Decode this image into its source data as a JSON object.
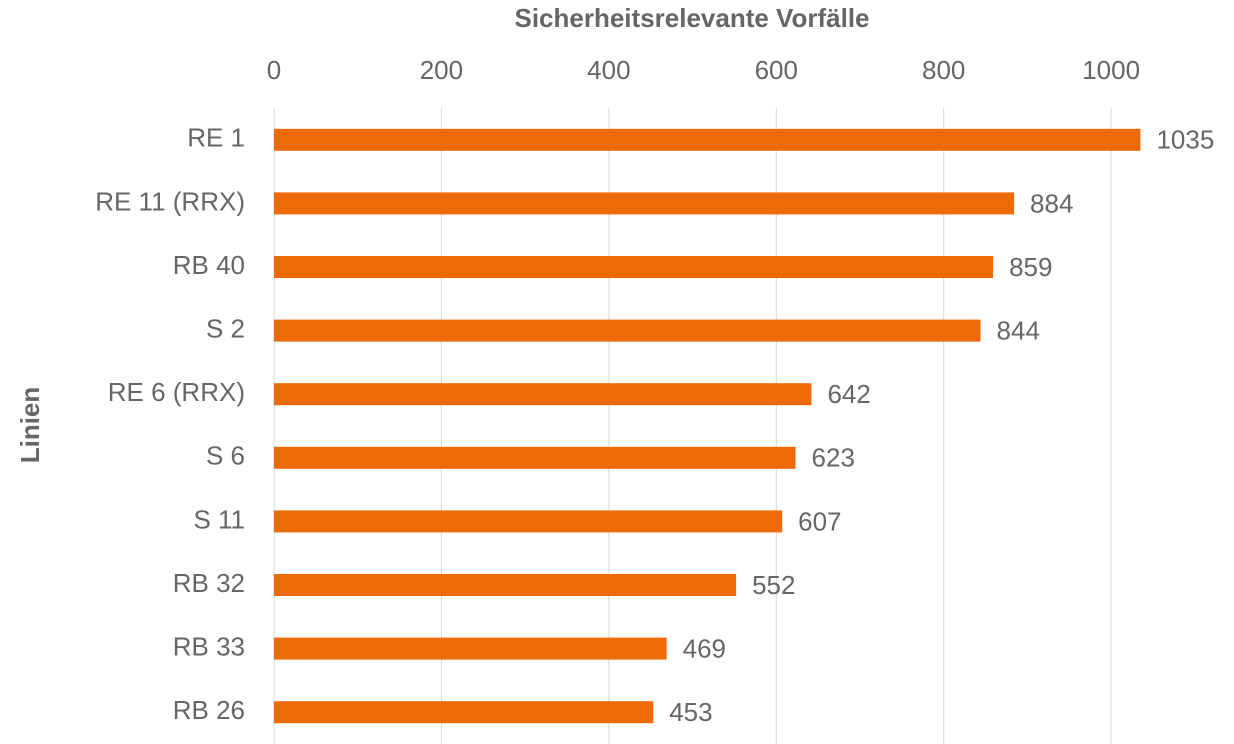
{
  "chart_data": {
    "type": "bar",
    "orientation": "horizontal",
    "x_label": "Sicherheitsrelevante Vorfälle",
    "y_label": "Linien",
    "categories": [
      "RE 1",
      "RE 11 (RRX)",
      "RB 40",
      "S 2",
      "RE 6 (RRX)",
      "S 6",
      "S 11",
      "RB 32",
      "RB 33",
      "RB 26"
    ],
    "values": [
      1035,
      884,
      859,
      844,
      642,
      623,
      607,
      552,
      469,
      453
    ],
    "color": "#ed6a07",
    "xlim": [
      0,
      1050
    ],
    "xticks": [
      0,
      200,
      400,
      600,
      800,
      1000
    ],
    "grid": true
  }
}
